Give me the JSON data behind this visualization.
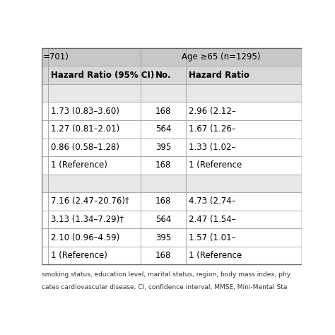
{
  "header1_left": "=701)",
  "header1_right": "Age ≥65 (n=1295)",
  "col_header_1": "Hazard Ratio (95% CI)",
  "col_header_2": "No.",
  "col_header_3": "Hazard Ratio",
  "blank_row_bg": "#e8e8e8",
  "header_bg": "#c8c8c8",
  "subheader_bg": "#d8d8d8",
  "row_bg": "#ffffff",
  "border_color": "#999999",
  "text_color": "#000000",
  "font_size": 8.5,
  "header_font_size": 8.5,
  "footer_line1": "smoking status, education level, marital status, region, body mass index, phy",
  "footer_line2": "cates cardiovascular disease; CI, confidence interval; MMSE, Mini-Mental Sta",
  "rows": [
    {
      "blank": true
    },
    {
      "blank": false,
      "c1": "1.73 (0.83–3.60)",
      "c2": "168",
      "c3": "2.96 (2.12–"
    },
    {
      "blank": false,
      "c1": "1.27 (0.81–2.01)",
      "c2": "564",
      "c3": "1.67 (1.26–"
    },
    {
      "blank": false,
      "c1": "0.86 (0.58–1.28)",
      "c2": "395",
      "c3": "1.33 (1.02–"
    },
    {
      "blank": false,
      "c1": "1 (Reference)",
      "c2": "168",
      "c3": "1 (Reference"
    },
    {
      "blank": true
    },
    {
      "blank": false,
      "c1": "7.16 (2.47–20.76)†",
      "c2": "168",
      "c3": "4.73 (2.74–"
    },
    {
      "blank": false,
      "c1": "3.13 (1.34–7.29)†",
      "c2": "564",
      "c3": "2.47 (1.54–"
    },
    {
      "blank": false,
      "c1": "2.10 (0.96–4.59)",
      "c2": "395",
      "c3": "1.57 (1.01–"
    },
    {
      "blank": false,
      "c1": "1 (Reference)",
      "c2": "168",
      "c3": "1 (Reference"
    }
  ]
}
